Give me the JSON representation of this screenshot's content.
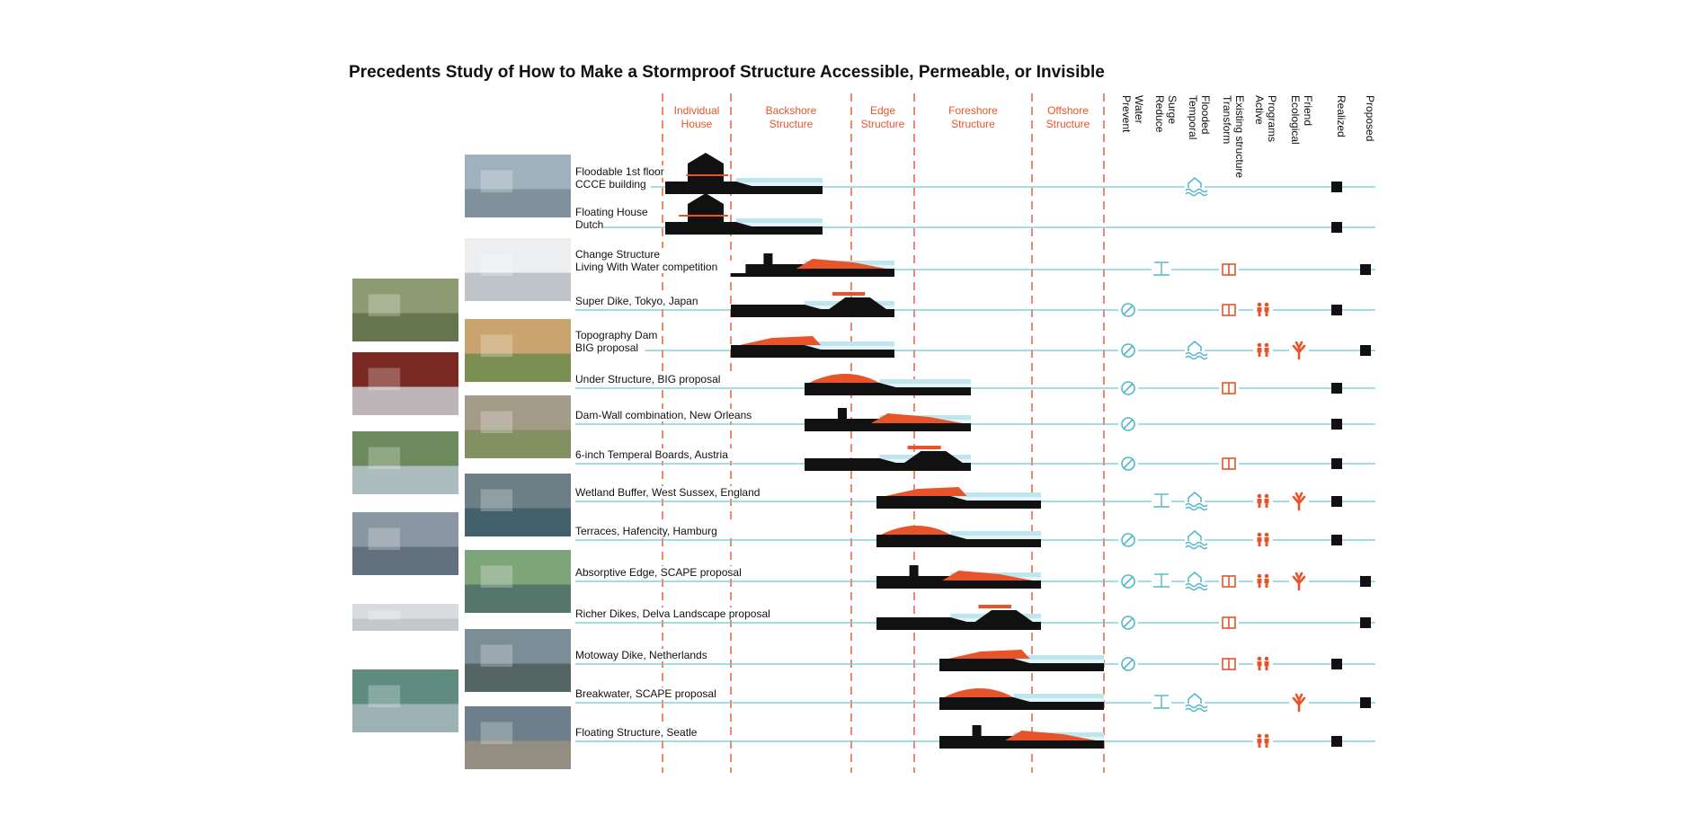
{
  "title": "Precedents Study of How to Make a Stormproof Structure Accessible, Permeable, or Invisible",
  "zones": [
    {
      "key": "individual",
      "line1": "Individual",
      "line2": "House"
    },
    {
      "key": "backshore",
      "line1": "Backshore",
      "line2": "Structure"
    },
    {
      "key": "edge",
      "line1": "Edge",
      "line2": "Structure"
    },
    {
      "key": "foreshore",
      "line1": "Foreshore",
      "line2": "Structure"
    },
    {
      "key": "offshore",
      "line1": "Offshore",
      "line2": "Structure"
    }
  ],
  "attribute_columns": [
    {
      "key": "prevent",
      "lines": [
        "Prevent",
        "Water"
      ]
    },
    {
      "key": "reduce",
      "lines": [
        "Reduce",
        "Surge"
      ]
    },
    {
      "key": "temporal",
      "lines": [
        "Temporal",
        "Flooded"
      ]
    },
    {
      "key": "transform",
      "lines": [
        "Transform",
        "Existing structure"
      ]
    },
    {
      "key": "active",
      "lines": [
        "Active",
        "Programs"
      ]
    },
    {
      "key": "ecological",
      "lines": [
        "Ecological",
        "Friend"
      ]
    },
    {
      "key": "realized",
      "lines": [
        "Realized"
      ]
    },
    {
      "key": "proposed",
      "lines": [
        "Proposed"
      ]
    }
  ],
  "colors": {
    "orange": "#e8542a",
    "water": "#bfe6ee",
    "line": "#6cc9d8",
    "icon": "#4fb8c9",
    "black": "#111111"
  },
  "precedents": [
    {
      "lines": [
        "Floodable 1st floor",
        "CCCE building"
      ],
      "zone": "individual",
      "icons": [
        "temporal"
      ],
      "status": "realized"
    },
    {
      "lines": [
        "Floating House",
        "Dutch"
      ],
      "zone": "individual",
      "icons": [],
      "status": "realized"
    },
    {
      "lines": [
        "Change Structure",
        "Living With Water competition"
      ],
      "zone": "backshore",
      "icons": [
        "reduce",
        "transform"
      ],
      "status": "proposed"
    },
    {
      "lines": [
        "Super Dike, Tokyo, Japan"
      ],
      "zone": "backshore",
      "icons": [
        "prevent",
        "transform",
        "active"
      ],
      "status": "realized"
    },
    {
      "lines": [
        "Topography Dam",
        "BIG proposal"
      ],
      "zone": "backshore",
      "icons": [
        "prevent",
        "temporal",
        "active",
        "ecological"
      ],
      "status": "proposed"
    },
    {
      "lines": [
        "Under Structure, BIG proposal"
      ],
      "zone": "edge",
      "icons": [
        "prevent",
        "transform"
      ],
      "status": "realized"
    },
    {
      "lines": [
        "Dam-Wall combination, New Orleans"
      ],
      "zone": "edge",
      "icons": [
        "prevent"
      ],
      "status": "realized"
    },
    {
      "lines": [
        "6-inch Temperal Boards, Austria"
      ],
      "zone": "edge",
      "icons": [
        "prevent",
        "transform"
      ],
      "status": "realized"
    },
    {
      "lines": [
        "Wetland Buffer, West Sussex, England"
      ],
      "zone": "foreshore",
      "icons": [
        "reduce",
        "temporal",
        "active",
        "ecological"
      ],
      "status": "realized"
    },
    {
      "lines": [
        "Terraces, Hafencity, Hamburg"
      ],
      "zone": "foreshore",
      "icons": [
        "prevent",
        "temporal",
        "active"
      ],
      "status": "realized"
    },
    {
      "lines": [
        "Absorptive Edge, SCAPE proposal"
      ],
      "zone": "foreshore",
      "icons": [
        "prevent",
        "reduce",
        "temporal",
        "transform",
        "active",
        "ecological"
      ],
      "status": "proposed"
    },
    {
      "lines": [
        "Richer Dikes, Delva Landscape proposal"
      ],
      "zone": "foreshore",
      "icons": [
        "prevent",
        "transform"
      ],
      "status": "proposed"
    },
    {
      "lines": [
        "Motoway Dike, Netherlands"
      ],
      "zone": "offshore",
      "icons": [
        "prevent",
        "transform",
        "active"
      ],
      "status": "realized"
    },
    {
      "lines": [
        "Breakwater, SCAPE proposal"
      ],
      "zone": "offshore",
      "icons": [
        "reduce",
        "temporal",
        "ecological"
      ],
      "status": "proposed"
    },
    {
      "lines": [
        "Floating Structure, Seatle"
      ],
      "zone": "offshore",
      "icons": [
        "active"
      ],
      "status": "realized"
    }
  ]
}
